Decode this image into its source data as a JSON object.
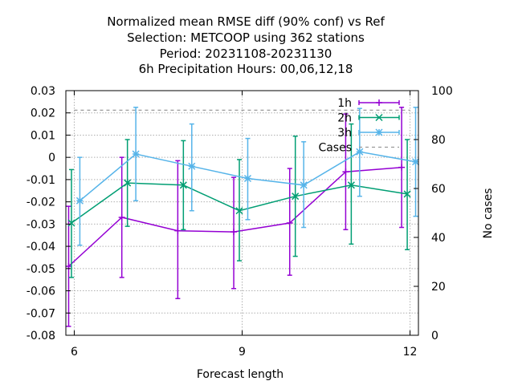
{
  "chart_data": {
    "type": "line",
    "title_lines": [
      "Normalized mean RMSE diff (90% conf) vs Ref",
      "Selection: METCOOP using   362 stations",
      "Period: 20231108-20231130",
      "6h Precipitation   Hours:  00,06,12,18"
    ],
    "xlabel": "Forecast length",
    "ylabel_right": "No cases",
    "xlim": [
      5.85,
      12.15
    ],
    "ylim": [
      -0.08,
      0.03
    ],
    "y2lim": [
      0,
      100
    ],
    "xticks": [
      6,
      9,
      12
    ],
    "yticks": [
      -0.08,
      -0.07,
      -0.06,
      -0.05,
      -0.04,
      -0.03,
      -0.02,
      -0.01,
      0,
      0.01,
      0.02,
      0.03
    ],
    "yticklabels": [
      "-0.08",
      "-0.07",
      "-0.06",
      "-0.05",
      "-0.04",
      "-0.03",
      "-0.02",
      "-0.01",
      "0",
      "0.01",
      "0.02",
      "0.03"
    ],
    "y2ticks": [
      0,
      20,
      40,
      60,
      80,
      100
    ],
    "grid": true,
    "legend_position": "top-right",
    "series": [
      {
        "name": "1h",
        "color": "#9400d3",
        "marker": "plus",
        "x": [
          5.9,
          6.85,
          7.85,
          8.85,
          9.85,
          10.85,
          11.85
        ],
        "y": [
          -0.049,
          -0.027,
          -0.033,
          -0.0335,
          -0.0295,
          -0.0065,
          -0.0045
        ],
        "err_lo": [
          -0.076,
          -0.054,
          -0.0635,
          -0.059,
          -0.053,
          -0.0325,
          -0.0315
        ],
        "err_hi": [
          -0.022,
          0.0,
          -0.0015,
          -0.009,
          -0.005,
          0.0195,
          0.0225
        ]
      },
      {
        "name": "2h",
        "color": "#009e73",
        "marker": "cross",
        "x": [
          5.95,
          6.95,
          7.95,
          8.95,
          9.95,
          10.95,
          11.95
        ],
        "y": [
          -0.0295,
          -0.0115,
          -0.0125,
          -0.024,
          -0.0175,
          -0.0125,
          -0.0165
        ],
        "err_lo": [
          -0.054,
          -0.031,
          -0.0325,
          -0.0465,
          -0.0445,
          -0.039,
          -0.0415
        ],
        "err_hi": [
          -0.0055,
          0.008,
          0.0075,
          -0.001,
          0.0095,
          0.015,
          0.008
        ]
      },
      {
        "name": "3h",
        "color": "#56b4e9",
        "marker": "star",
        "x": [
          6.1,
          7.1,
          8.1,
          9.1,
          10.1,
          11.1,
          12.1
        ],
        "y": [
          -0.0195,
          0.0015,
          -0.004,
          -0.0095,
          -0.0125,
          0.0025,
          -0.002
        ],
        "err_lo": [
          -0.0395,
          -0.0195,
          -0.024,
          -0.028,
          -0.0315,
          -0.0175,
          -0.0265
        ],
        "err_hi": [
          0.0,
          0.0225,
          0.015,
          0.0085,
          0.007,
          0.022,
          0.0225
        ]
      }
    ],
    "cases": {
      "name": "Cases",
      "color": "#999999",
      "x": [
        6.0,
        12.0
      ],
      "y2": [
        92,
        92
      ]
    }
  }
}
